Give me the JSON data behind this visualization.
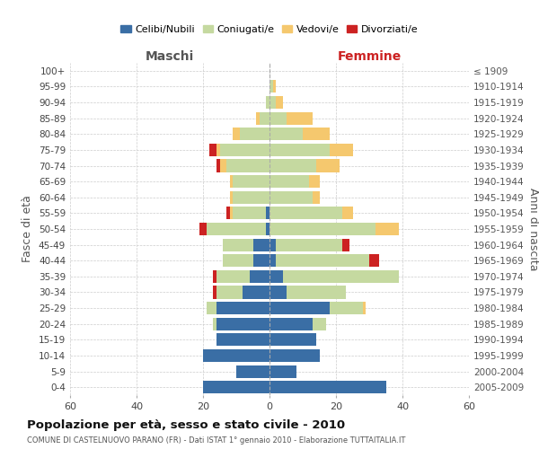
{
  "age_groups": [
    "0-4",
    "5-9",
    "10-14",
    "15-19",
    "20-24",
    "25-29",
    "30-34",
    "35-39",
    "40-44",
    "45-49",
    "50-54",
    "55-59",
    "60-64",
    "65-69",
    "70-74",
    "75-79",
    "80-84",
    "85-89",
    "90-94",
    "95-99",
    "100+"
  ],
  "birth_years": [
    "2005-2009",
    "2000-2004",
    "1995-1999",
    "1990-1994",
    "1985-1989",
    "1980-1984",
    "1975-1979",
    "1970-1974",
    "1965-1969",
    "1960-1964",
    "1955-1959",
    "1950-1954",
    "1945-1949",
    "1940-1944",
    "1935-1939",
    "1930-1934",
    "1925-1929",
    "1920-1924",
    "1915-1919",
    "1910-1914",
    "≤ 1909"
  ],
  "colors": {
    "celibi": "#3a6ea5",
    "coniugati": "#c5d9a0",
    "vedovi": "#f5c86e",
    "divorziati": "#cc2222"
  },
  "maschi": {
    "celibi": [
      20,
      10,
      20,
      16,
      16,
      16,
      8,
      6,
      5,
      5,
      1,
      1,
      0,
      0,
      0,
      0,
      0,
      0,
      0,
      0,
      0
    ],
    "coniugati": [
      0,
      0,
      0,
      0,
      1,
      3,
      8,
      10,
      9,
      9,
      18,
      10,
      11,
      11,
      13,
      15,
      9,
      3,
      1,
      0,
      0
    ],
    "vedovi": [
      0,
      0,
      0,
      0,
      0,
      0,
      0,
      0,
      0,
      0,
      0,
      1,
      1,
      1,
      2,
      1,
      2,
      1,
      0,
      0,
      0
    ],
    "divorziati": [
      0,
      0,
      0,
      0,
      0,
      0,
      1,
      1,
      0,
      0,
      2,
      1,
      0,
      0,
      1,
      2,
      0,
      0,
      0,
      0,
      0
    ]
  },
  "femmine": {
    "celibi": [
      35,
      8,
      15,
      14,
      13,
      18,
      5,
      4,
      2,
      2,
      0,
      0,
      0,
      0,
      0,
      0,
      0,
      0,
      0,
      0,
      0
    ],
    "coniugati": [
      0,
      0,
      0,
      0,
      4,
      10,
      18,
      35,
      28,
      20,
      32,
      22,
      13,
      12,
      14,
      18,
      10,
      5,
      2,
      1,
      0
    ],
    "vedovi": [
      0,
      0,
      0,
      0,
      0,
      1,
      0,
      0,
      0,
      0,
      7,
      3,
      2,
      3,
      7,
      7,
      8,
      8,
      2,
      1,
      0
    ],
    "divorziati": [
      0,
      0,
      0,
      0,
      0,
      0,
      0,
      0,
      3,
      2,
      0,
      0,
      0,
      0,
      0,
      0,
      0,
      0,
      0,
      0,
      0
    ]
  },
  "xlim": 60,
  "title": "Popolazione per età, sesso e stato civile - 2010",
  "subtitle": "COMUNE DI CASTELNUOVO PARANO (FR) - Dati ISTAT 1° gennaio 2010 - Elaborazione TUTTAITALIA.IT",
  "xlabel_left": "Maschi",
  "xlabel_right": "Femmine",
  "ylabel_left": "Fasce di età",
  "ylabel_right": "Anni di nascita",
  "legend_labels": [
    "Celibi/Nubili",
    "Coniugati/e",
    "Vedovi/e",
    "Divorziati/e"
  ],
  "bg_color": "#ffffff",
  "grid_color": "#cccccc",
  "bar_height": 0.8
}
